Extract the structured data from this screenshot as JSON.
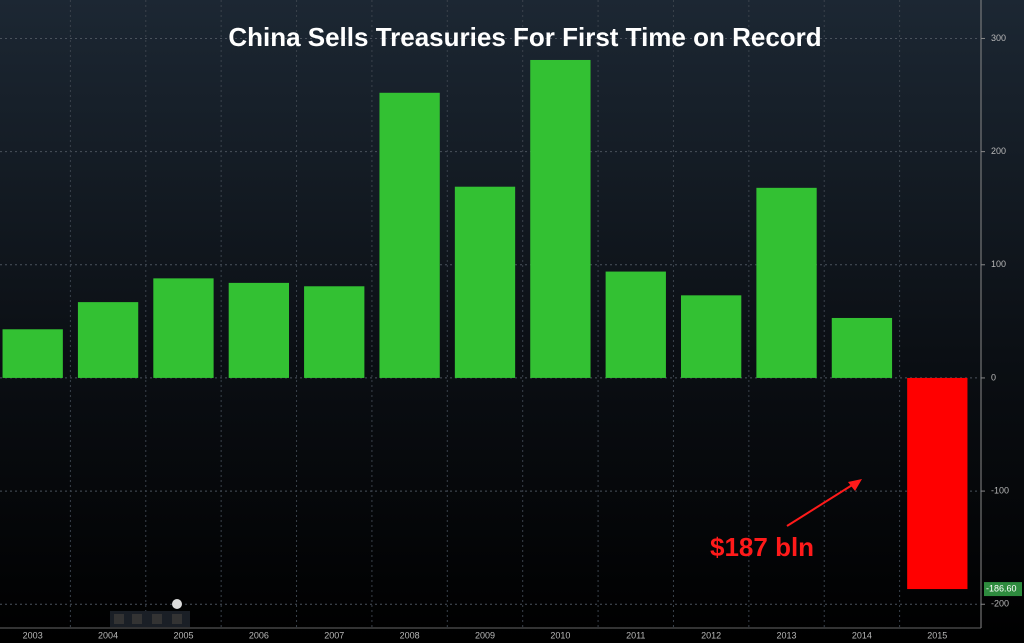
{
  "chart_data": {
    "type": "bar",
    "title": "China Sells Treasuries For First Time on Record",
    "categories": [
      "2003",
      "2004",
      "2005",
      "2006",
      "2007",
      "2008",
      "2009",
      "2010",
      "2011",
      "2012",
      "2013",
      "2014",
      "2015"
    ],
    "values": [
      43,
      67,
      88,
      84,
      81,
      252,
      169,
      281,
      94,
      73,
      168,
      53,
      -186.6
    ],
    "value_labels": [
      null,
      null,
      null,
      null,
      null,
      null,
      null,
      null,
      null,
      null,
      null,
      null,
      "-186.60"
    ],
    "positive_color": "#33c133",
    "negative_color": "#ff0000",
    "ylim": [
      -221,
      334
    ],
    "yticks": [
      -200,
      -100,
      0,
      100,
      200,
      300
    ],
    "grid": true,
    "annotation": "$187 bln"
  }
}
